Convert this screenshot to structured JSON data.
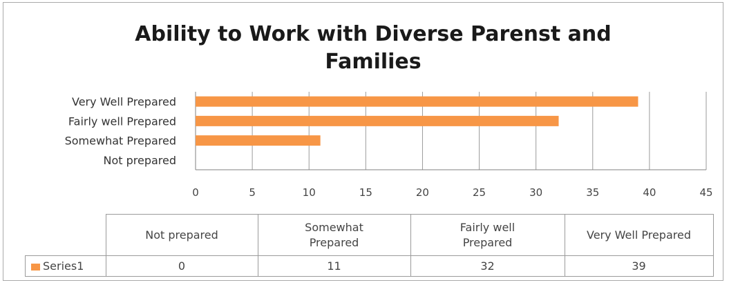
{
  "chart_data": {
    "type": "bar",
    "orientation": "horizontal",
    "title_line1": "Ability to Work with Diverse Parenst and",
    "title_line2": "Families",
    "categories": [
      "Not prepared",
      "Somewhat Prepared",
      "Fairly well Prepared",
      "Very Well Prepared"
    ],
    "series": [
      {
        "name": "Series1",
        "values": [
          0,
          11,
          32,
          39
        ],
        "color": "#f79646"
      }
    ],
    "xlim": [
      0,
      45
    ],
    "xticks": [
      "0",
      "5",
      "10",
      "15",
      "20",
      "25",
      "30",
      "35",
      "40",
      "45"
    ],
    "grid": true,
    "legend": "data-table",
    "table": {
      "headers": [
        "Not prepared",
        "Somewhat\nPrepared",
        "Fairly well\nPrepared",
        "Very Well Prepared"
      ],
      "series_label": "Series1",
      "values": [
        "0",
        "11",
        "32",
        "39"
      ]
    }
  }
}
